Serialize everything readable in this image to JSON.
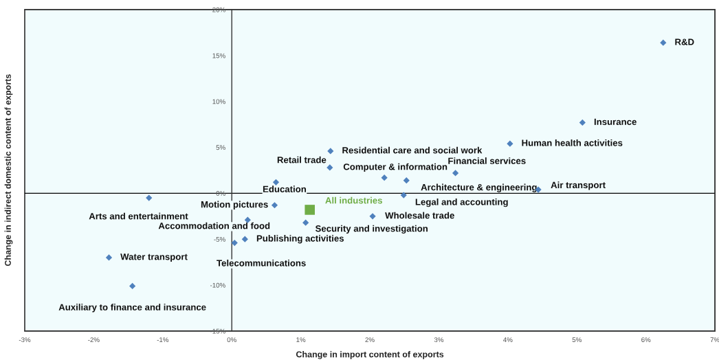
{
  "chart_data": {
    "type": "scatter",
    "xlabel": "Change in import content of exports",
    "ylabel": "Change in indirect domestic content of exports",
    "xlim": [
      -3,
      7
    ],
    "ylim": [
      -15,
      20
    ],
    "xticks": [
      {
        "value": -3,
        "label": "-3%"
      },
      {
        "value": -2,
        "label": "-2%"
      },
      {
        "value": -1,
        "label": "-1%"
      },
      {
        "value": 0,
        "label": "0%"
      },
      {
        "value": 1,
        "label": "1%"
      },
      {
        "value": 2,
        "label": "2%"
      },
      {
        "value": 3,
        "label": "3%"
      },
      {
        "value": 4,
        "label": "4%"
      },
      {
        "value": 5,
        "label": "5%"
      },
      {
        "value": 6,
        "label": "6%"
      },
      {
        "value": 7,
        "label": "7%"
      }
    ],
    "yticks": [
      {
        "value": -15,
        "label": "-15%"
      },
      {
        "value": -10,
        "label": "-10%"
      },
      {
        "value": -5,
        "label": "-5%"
      },
      {
        "value": 0,
        "label": "0%"
      },
      {
        "value": 5,
        "label": "5%"
      },
      {
        "value": 10,
        "label": "10%"
      },
      {
        "value": 15,
        "label": "15%"
      },
      {
        "value": 20,
        "label": "20%"
      }
    ],
    "grid": false,
    "legend": false,
    "ref_lines": [
      {
        "axis": "y",
        "value": 0,
        "color": "#000000"
      }
    ],
    "series": [
      {
        "marker": "diamond",
        "color": "#4f81bd",
        "x": [
          6.25,
          5.08,
          4.03,
          1.43,
          2.21,
          1.42,
          3.24,
          0.64,
          2.53,
          4.44,
          2.49,
          0.62,
          -1.2,
          0.23,
          2.04,
          1.07,
          0.19,
          0.04,
          -1.78,
          -1.44
        ],
        "values": [
          16.4,
          7.7,
          5.4,
          4.6,
          1.7,
          2.8,
          2.2,
          1.2,
          1.4,
          0.4,
          -0.2,
          -1.3,
          -0.5,
          -2.9,
          -2.5,
          -3.2,
          -5.0,
          -5.4,
          -7.0,
          -10.1
        ]
      },
      {
        "marker": "square",
        "name": "All industries",
        "color": "#70ad47",
        "x": [
          1.13
        ],
        "values": [
          -1.8
        ]
      }
    ],
    "annotations": [
      {
        "text": "R&D",
        "x": 6.25,
        "y": 16.4
      },
      {
        "text": "Insurance",
        "x": 5.08,
        "y": 7.7
      },
      {
        "text": "Human health activities",
        "x": 4.03,
        "y": 5.4
      },
      {
        "text": "Residential care and social work",
        "x": 1.43,
        "y": 4.6
      },
      "Retail trade",
      {
        "text": "Computer & information",
        "x": 1.42,
        "y": 2.8
      },
      {
        "text": "Financial services",
        "x": 3.24,
        "y": 2.2
      },
      {
        "text": "Education",
        "x": 0.64,
        "y": 1.2
      },
      {
        "text": "Architecture & engineering",
        "x": 2.53,
        "y": 1.4
      },
      {
        "text": "Air transport",
        "x": 4.44,
        "y": 0.4
      },
      {
        "text": "Legal and accounting",
        "x": 2.49,
        "y": -0.2
      },
      {
        "text": "Motion pictures",
        "x": 0.62,
        "y": -1.3
      },
      {
        "text": "Arts and entertainment",
        "x": -1.2,
        "y": -0.5
      },
      {
        "text": "Accommodation and food",
        "x": 0.23,
        "y": -2.9
      },
      {
        "text": "Wholesale trade",
        "x": 2.04,
        "y": -2.5
      },
      {
        "text": "Security and investigation",
        "x": 1.07,
        "y": -3.2
      },
      {
        "text": "Publishing activities",
        "x": 0.19,
        "y": -5.0
      },
      {
        "text": "Telecommunications",
        "x": 0.04,
        "y": -5.4
      },
      {
        "text": "Water transport",
        "x": -1.78,
        "y": -7.0
      },
      {
        "text": "Auxiliary to finance and insurance",
        "x": -1.44,
        "y": -10.1
      }
    ]
  }
}
